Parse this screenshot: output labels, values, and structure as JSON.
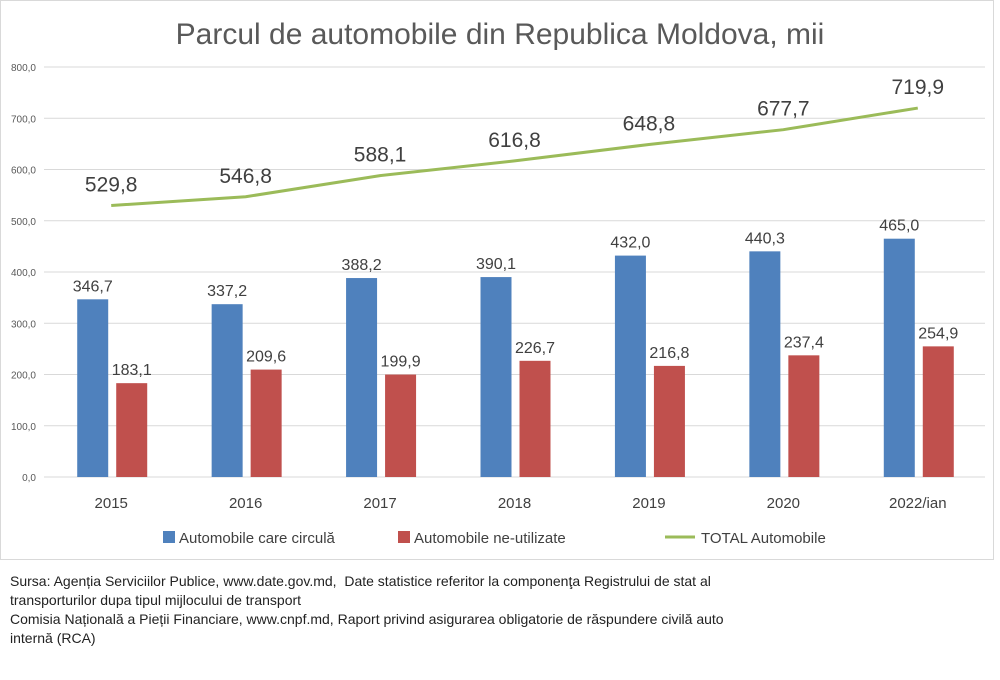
{
  "chart_data": {
    "type": "bar",
    "title": "Parcul de automobile din Republica Moldova, mii",
    "categories": [
      "2015",
      "2016",
      "2017",
      "2018",
      "2019",
      "2020",
      "2022/ian"
    ],
    "series": [
      {
        "name": "Automobile care circulă",
        "type": "bar",
        "color": "#4f81bd",
        "values": [
          346.7,
          337.2,
          388.2,
          390.1,
          432.0,
          440.3,
          465.0
        ],
        "labels": [
          "346,7",
          "337,2",
          "388,2",
          "390,1",
          "432,0",
          "440,3",
          "465,0"
        ]
      },
      {
        "name": "Automobile ne-utilizate",
        "type": "bar",
        "color": "#c0504d",
        "values": [
          183.1,
          209.6,
          199.9,
          226.7,
          216.8,
          237.4,
          254.9
        ],
        "labels": [
          "183,1",
          "209,6",
          "199,9",
          "226,7",
          "216,8",
          "237,4",
          "254,9"
        ]
      },
      {
        "name": "TOTAL Automobile",
        "type": "line",
        "color": "#9bbb59",
        "values": [
          529.8,
          546.8,
          588.1,
          616.8,
          648.8,
          677.7,
          719.9
        ],
        "labels": [
          "529,8",
          "546,8",
          "588,1",
          "616,8",
          "648,8",
          "677,7",
          "719,9"
        ]
      }
    ],
    "ylim": [
      0,
      800
    ],
    "yticks": [
      "0,0",
      "100,0",
      "200,0",
      "300,0",
      "400,0",
      "500,0",
      "600,0",
      "700,0",
      "800,0"
    ],
    "grid": true,
    "legend": "bottom",
    "xlabel": "",
    "ylabel": ""
  },
  "source": [
    "Sursa: Agenția Serviciilor Publice, www.date.gov.md,  Date statistice referitor la componenţa Registrului de stat al",
    "transporturilor dupa tipul mijlocului de transport",
    "Comisia Națională a Pieții Financiare, www.cnpf.md, Raport privind asigurarea obligatorie de răspundere civilă auto",
    "internă (RCA)"
  ]
}
